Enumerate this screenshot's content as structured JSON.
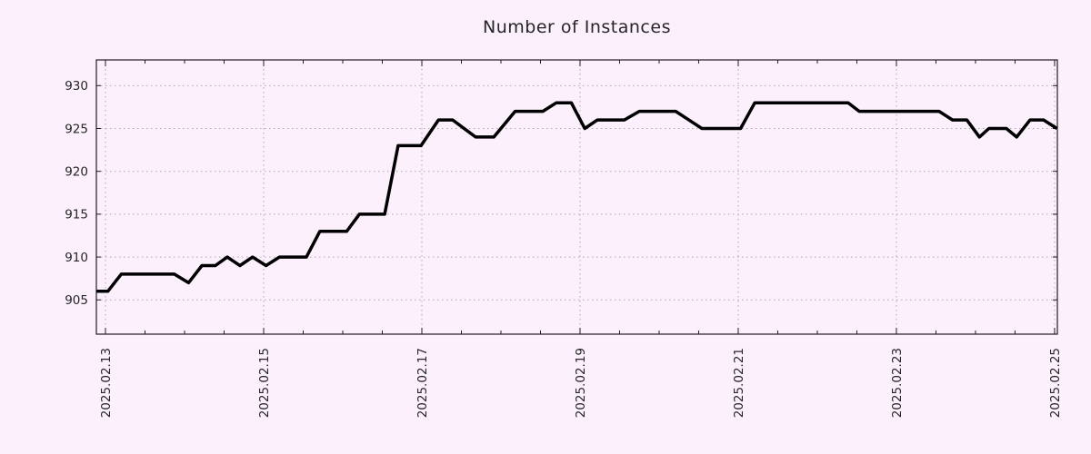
{
  "figure": {
    "title": "Number of Instances"
  },
  "colors": {
    "background": "#fbf0fb",
    "line": "#000000",
    "grid": "#b1a6b1",
    "border": "#231b29",
    "text": "#262626"
  },
  "chart_data": {
    "type": "line",
    "title": "Number of Instances",
    "xlabel": "",
    "ylabel": "",
    "legend": "none",
    "grid": {
      "show": true,
      "style": "dotted"
    },
    "x_axis": {
      "tick_labels": [
        "2025.02.13",
        "2025.02.15",
        "2025.02.17",
        "2025.02.19",
        "2025.02.21",
        "2025.02.23",
        "2025.02.25"
      ],
      "tick_days": [
        0,
        2,
        4,
        6,
        8,
        10,
        12
      ],
      "minor_tick_interval_days": 0.5,
      "range_days": [
        -0.115,
        12.035
      ],
      "label_rotation_deg": -90
    },
    "y_axis": {
      "ticks": [
        905,
        910,
        915,
        920,
        925,
        930
      ],
      "tick_labels": [
        "905",
        "910",
        "915",
        "920",
        "925",
        "930"
      ],
      "range": [
        901,
        933
      ]
    },
    "series": [
      {
        "name": "Number of Instances",
        "color": "#000000",
        "points_day_value": [
          [
            -0.11,
            906
          ],
          [
            0.03,
            906
          ],
          [
            0.2,
            908
          ],
          [
            0.87,
            908
          ],
          [
            1.05,
            907
          ],
          [
            1.22,
            909
          ],
          [
            1.39,
            909
          ],
          [
            1.54,
            910
          ],
          [
            1.7,
            909
          ],
          [
            1.86,
            910
          ],
          [
            2.03,
            909
          ],
          [
            2.2,
            910
          ],
          [
            2.54,
            910
          ],
          [
            2.71,
            913
          ],
          [
            3.05,
            913
          ],
          [
            3.21,
            915
          ],
          [
            3.53,
            915
          ],
          [
            3.7,
            923
          ],
          [
            3.99,
            923
          ],
          [
            4.21,
            926
          ],
          [
            4.39,
            926
          ],
          [
            4.68,
            924
          ],
          [
            4.91,
            924
          ],
          [
            5.18,
            927
          ],
          [
            5.53,
            927
          ],
          [
            5.7,
            928
          ],
          [
            5.89,
            928
          ],
          [
            6.06,
            925
          ],
          [
            6.22,
            926
          ],
          [
            6.56,
            926
          ],
          [
            6.75,
            927
          ],
          [
            7.21,
            927
          ],
          [
            7.54,
            925
          ],
          [
            8.03,
            925
          ],
          [
            8.21,
            928
          ],
          [
            9.39,
            928
          ],
          [
            9.53,
            927
          ],
          [
            10.54,
            927
          ],
          [
            10.71,
            926
          ],
          [
            10.89,
            926
          ],
          [
            11.05,
            924
          ],
          [
            11.17,
            925
          ],
          [
            11.39,
            925
          ],
          [
            11.52,
            924
          ],
          [
            11.69,
            926
          ],
          [
            11.86,
            926
          ],
          [
            12.03,
            925
          ]
        ]
      }
    ]
  }
}
